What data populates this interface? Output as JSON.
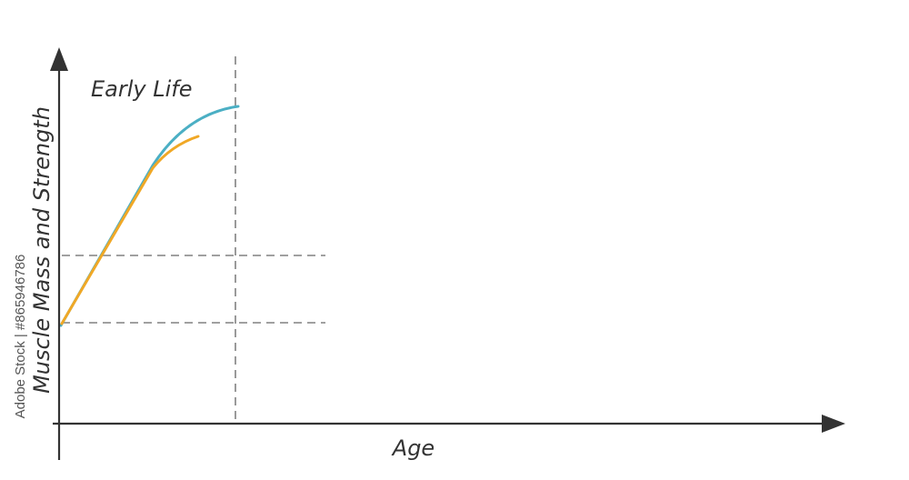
{
  "diagram": {
    "region_label": "Early Life",
    "y_axis_label": "Muscle Mass and Strength",
    "x_axis_label": "Age",
    "series_colors": {
      "upper_curve": "#4bafc4",
      "lower_curve": "#f0a826"
    },
    "axis_color": "#333333",
    "guide_color": "#808080"
  },
  "watermark": "Adobe Stock | #865946786"
}
